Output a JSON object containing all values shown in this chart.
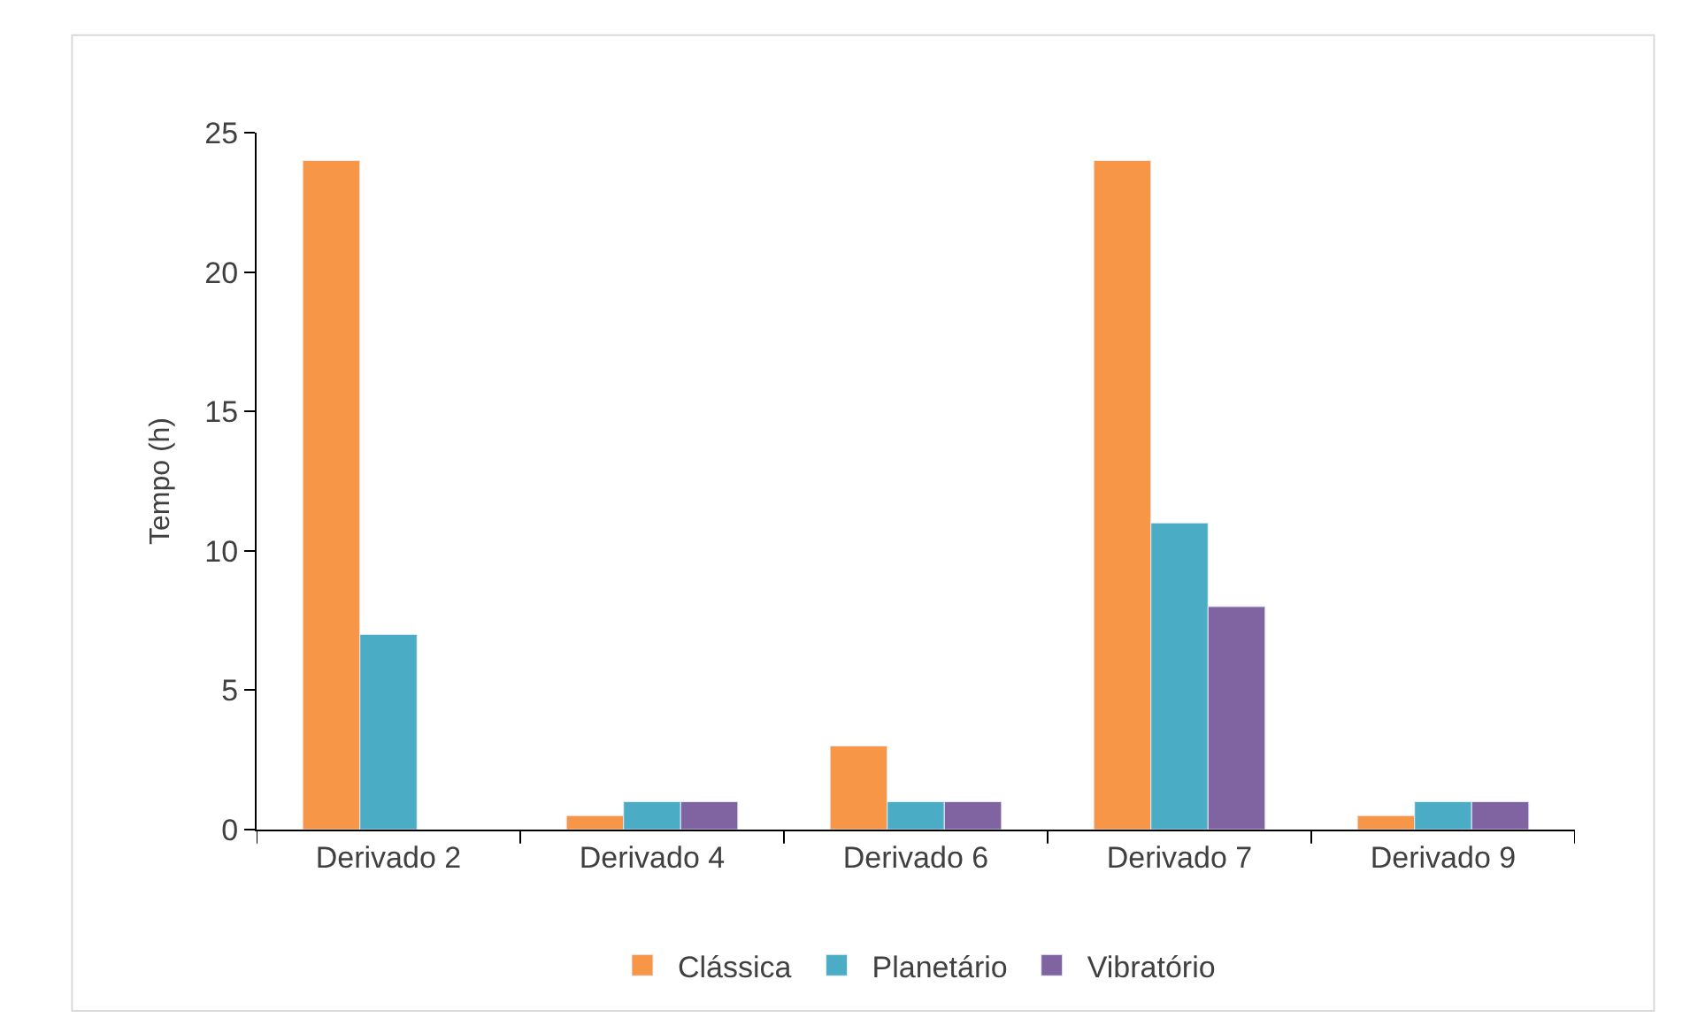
{
  "chart_data": {
    "type": "bar",
    "ylabel": "Tempo (h)",
    "categories": [
      "Derivado 2",
      "Derivado 4",
      "Derivado 6",
      "Derivado 7",
      "Derivado 9"
    ],
    "series": [
      {
        "name": "Clássica",
        "color": "#f79646",
        "values": [
          24,
          0.5,
          3,
          24,
          0.5
        ]
      },
      {
        "name": "Planetário",
        "color": "#4bacc6",
        "values": [
          7,
          1,
          1,
          11,
          1
        ]
      },
      {
        "name": "Vibratório",
        "color": "#8064a2",
        "values": [
          null,
          1,
          1,
          8,
          1
        ]
      }
    ],
    "ylim": [
      0,
      25
    ],
    "yticks": [
      0,
      5,
      10,
      15,
      20,
      25
    ],
    "legend": "bottom"
  }
}
